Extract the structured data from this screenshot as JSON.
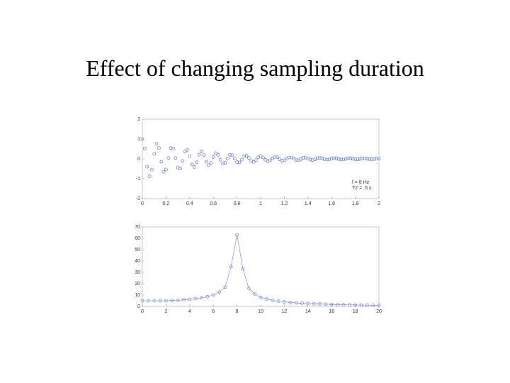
{
  "title": "Effect of changing sampling duration",
  "chart_data": [
    {
      "type": "scatter",
      "annotations": [
        "f = 8 Hz",
        "T2 = .5 s"
      ],
      "xlim": [
        0,
        2
      ],
      "ylim": [
        -2,
        2
      ],
      "xticks": [
        0,
        0.2,
        0.4,
        0.6,
        0.8,
        1,
        1.2,
        1.4,
        1.6,
        1.8,
        2
      ],
      "yticks": [
        -2,
        -1,
        0,
        1,
        2
      ],
      "series": [
        {
          "color": "#5b6fd6",
          "x": [
            0,
            0.02,
            0.04,
            0.06,
            0.08,
            0.1,
            0.12,
            0.14,
            0.16,
            0.18,
            0.2,
            0.22,
            0.24,
            0.26,
            0.28,
            0.3,
            0.32,
            0.34,
            0.36,
            0.38,
            0.4,
            0.42,
            0.44,
            0.46,
            0.48,
            0.5,
            0.52,
            0.54,
            0.56,
            0.58,
            0.6,
            0.62,
            0.64,
            0.66,
            0.68,
            0.7,
            0.72,
            0.74,
            0.76,
            0.78,
            0.8,
            0.82,
            0.84,
            0.86,
            0.88,
            0.9,
            0.92,
            0.94,
            0.96,
            0.98,
            1,
            1.02,
            1.04,
            1.06,
            1.08,
            1.1,
            1.12,
            1.14,
            1.16,
            1.18,
            1.2,
            1.22,
            1.24,
            1.26,
            1.28,
            1.3,
            1.32,
            1.34,
            1.36,
            1.38,
            1.4,
            1.42,
            1.44,
            1.46,
            1.48,
            1.5,
            1.52,
            1.54,
            1.56,
            1.58,
            1.6,
            1.62,
            1.64,
            1.66,
            1.68,
            1.7,
            1.72,
            1.74,
            1.76,
            1.78,
            1.8,
            1.82,
            1.84,
            1.86,
            1.88,
            1.9,
            1.92,
            1.94,
            1.96,
            1.98,
            2
          ],
          "values": [
            1,
            0.52,
            -0.39,
            -0.88,
            -0.54,
            0.25,
            0.76,
            0.55,
            -0.14,
            -0.65,
            -0.54,
            0.04,
            0.54,
            0.52,
            0.04,
            -0.44,
            -0.49,
            -0.1,
            0.36,
            0.45,
            0.14,
            -0.28,
            -0.41,
            -0.17,
            0.21,
            0.37,
            0.19,
            -0.15,
            -0.32,
            -0.2,
            0.09,
            0.28,
            0.2,
            -0.05,
            -0.24,
            -0.2,
            0.02,
            0.2,
            0.19,
            0.01,
            -0.16,
            -0.18,
            -0.04,
            0.13,
            0.17,
            0.05,
            -0.1,
            -0.15,
            -0.06,
            0.08,
            0.14,
            0.07,
            -0.05,
            -0.12,
            -0.07,
            0.03,
            0.1,
            0.08,
            -0.02,
            -0.09,
            -0.07,
            0.01,
            0.07,
            0.07,
            0.01,
            -0.06,
            -0.07,
            -0.01,
            0.05,
            0.06,
            0.02,
            -0.04,
            -0.06,
            -0.02,
            0.03,
            0.05,
            0.03,
            -0.02,
            -0.04,
            -0.03,
            0.01,
            0.04,
            0.03,
            -0.01,
            -0.03,
            -0.03,
            0,
            0.03,
            0.03,
            0,
            -0.02,
            -0.02,
            -0.01,
            0.02,
            0.02,
            0.01,
            -0.01,
            -0.02,
            -0.01,
            0.01,
            0.02
          ]
        }
      ]
    },
    {
      "type": "line",
      "xlim": [
        0,
        20
      ],
      "ylim": [
        0,
        70
      ],
      "xticks": [
        0,
        2,
        4,
        6,
        8,
        10,
        12,
        14,
        16,
        18,
        20
      ],
      "yticks": [
        0,
        10,
        20,
        30,
        40,
        50,
        60,
        70
      ],
      "series": [
        {
          "color": "#6f80d8",
          "x": [
            0,
            0.5,
            1,
            1.5,
            2,
            2.5,
            3,
            3.5,
            4,
            4.5,
            5,
            5.5,
            6,
            6.5,
            7,
            7.5,
            8,
            8.5,
            9,
            9.5,
            10,
            10.5,
            11,
            11.5,
            12,
            12.5,
            13,
            13.5,
            14,
            14.5,
            15,
            15.5,
            16,
            16.5,
            17,
            17.5,
            18,
            18.5,
            19,
            19.5,
            20
          ],
          "values": [
            5,
            5,
            5,
            5,
            5,
            5.2,
            5.4,
            5.8,
            6.2,
            6.8,
            7.6,
            8.6,
            10,
            12.5,
            17,
            35,
            63,
            33,
            16,
            11,
            8,
            6.5,
            5.4,
            4.6,
            4,
            3.5,
            3.1,
            2.8,
            2.5,
            2.3,
            2.1,
            1.9,
            1.7,
            1.6,
            1.5,
            1.4,
            1.3,
            1.2,
            1.1,
            1.05,
            1
          ]
        }
      ]
    }
  ]
}
